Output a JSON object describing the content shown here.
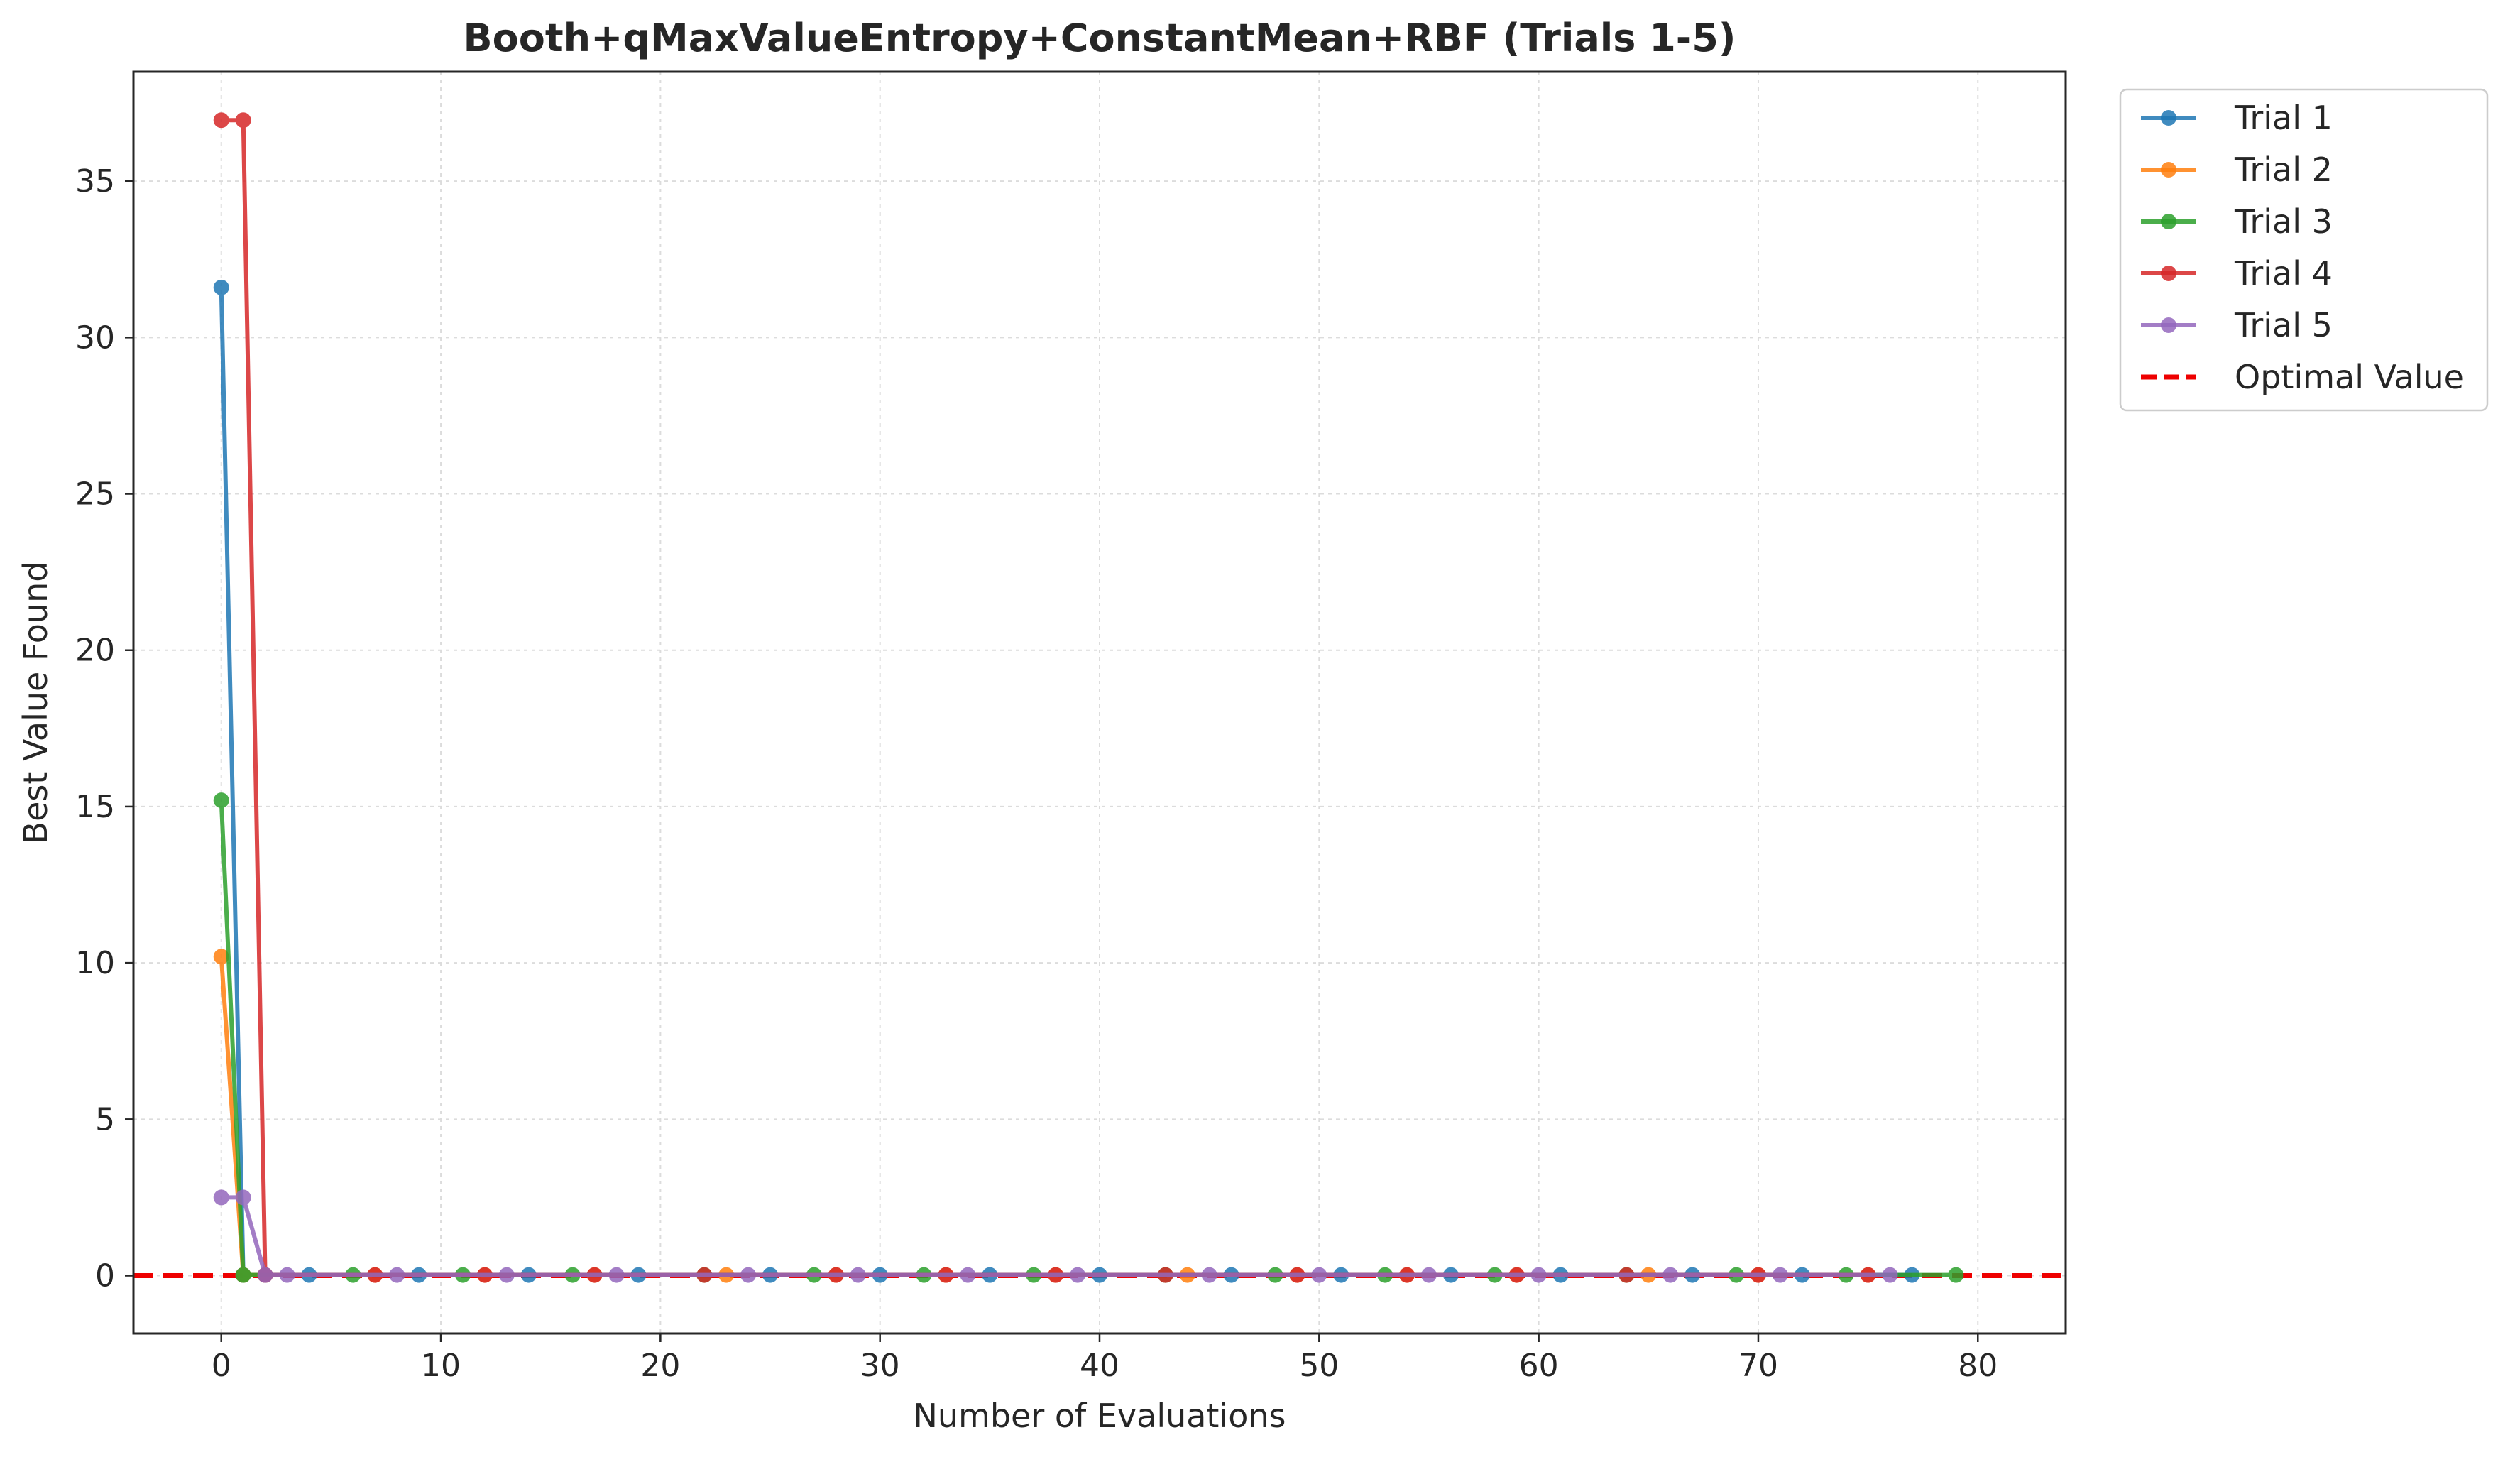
{
  "chart_data": {
    "type": "line",
    "title": "Booth+qMaxValueEntropy+ConstantMean+RBF (Trials 1-5)",
    "xlabel": "Number of Evaluations",
    "ylabel": "Best Value Found",
    "xlim": [
      -4,
      84
    ],
    "ylim": [
      -1.85,
      38.5
    ],
    "xticks": [
      0,
      10,
      20,
      30,
      40,
      50,
      60,
      70,
      80
    ],
    "yticks": [
      0,
      5,
      10,
      15,
      20,
      25,
      30,
      35
    ],
    "grid": true,
    "legend_position": "outside-top-right",
    "series": [
      {
        "name": "Trial 1",
        "color": "#1f77b4",
        "x": [
          0,
          1,
          2,
          4,
          9,
          14,
          19,
          25,
          30,
          35,
          40,
          46,
          51,
          56,
          61,
          67,
          72,
          77
        ],
        "y": [
          31.6,
          0.02,
          0.02,
          0.02,
          0.02,
          0.02,
          0.02,
          0.02,
          0.02,
          0.02,
          0.02,
          0.02,
          0.02,
          0.02,
          0.02,
          0.02,
          0.02,
          0.02
        ]
      },
      {
        "name": "Trial 2",
        "color": "#ff7f0e",
        "x": [
          0,
          1,
          2,
          7,
          12,
          17,
          23,
          28,
          33,
          38,
          44,
          49,
          54,
          59,
          65,
          70,
          75
        ],
        "y": [
          10.2,
          0.02,
          0.02,
          0.02,
          0.02,
          0.02,
          0.02,
          0.02,
          0.02,
          0.02,
          0.02,
          0.02,
          0.02,
          0.02,
          0.02,
          0.02,
          0.02
        ]
      },
      {
        "name": "Trial 3",
        "color": "#2ca02c",
        "x": [
          0,
          1,
          6,
          11,
          16,
          22,
          27,
          32,
          37,
          43,
          48,
          53,
          58,
          64,
          69,
          74,
          79
        ],
        "y": [
          15.2,
          0.02,
          0.02,
          0.02,
          0.02,
          0.02,
          0.02,
          0.02,
          0.02,
          0.02,
          0.02,
          0.02,
          0.02,
          0.02,
          0.02,
          0.02,
          0.02
        ]
      },
      {
        "name": "Trial 4",
        "color": "#d62728",
        "x": [
          0,
          1,
          2,
          7,
          12,
          17,
          22,
          28,
          33,
          38,
          43,
          49,
          54,
          59,
          64,
          70,
          75
        ],
        "y": [
          36.95,
          36.95,
          0.02,
          0.02,
          0.02,
          0.02,
          0.02,
          0.02,
          0.02,
          0.02,
          0.02,
          0.02,
          0.02,
          0.02,
          0.02,
          0.02,
          0.02
        ]
      },
      {
        "name": "Trial 5",
        "color": "#9467bd",
        "x": [
          0,
          1,
          2,
          3,
          8,
          13,
          18,
          24,
          29,
          34,
          39,
          45,
          50,
          55,
          60,
          66,
          71,
          76
        ],
        "y": [
          2.5,
          2.5,
          0.02,
          0.02,
          0.02,
          0.02,
          0.02,
          0.02,
          0.02,
          0.02,
          0.02,
          0.02,
          0.02,
          0.02,
          0.02,
          0.02,
          0.02,
          0.02
        ]
      }
    ],
    "reference_line": {
      "name": "Optimal Value",
      "y": 0,
      "color": "#ee0000",
      "style": "dashed"
    }
  }
}
